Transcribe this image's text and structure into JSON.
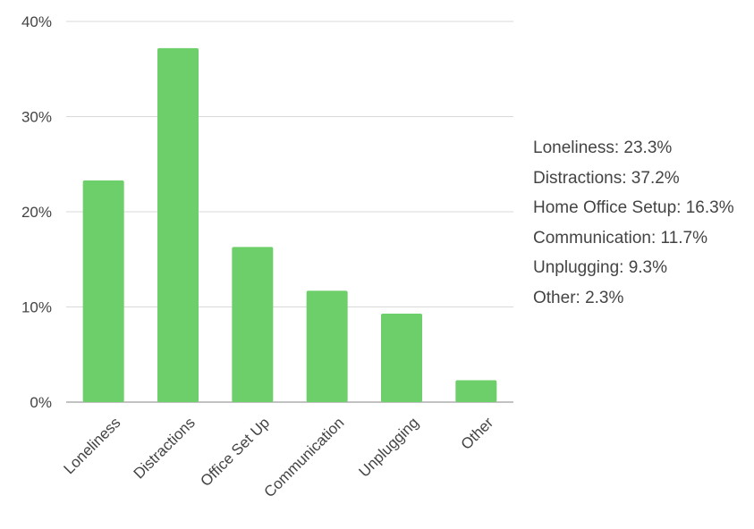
{
  "chart_data": {
    "type": "bar",
    "categories": [
      "Loneliness",
      "Distractions",
      "Office Set Up",
      "Communication",
      "Unplugging",
      "Other"
    ],
    "values": [
      23.3,
      37.2,
      16.3,
      11.7,
      9.3,
      2.3
    ],
    "ylim": [
      0,
      40
    ],
    "yticks": [
      "0%",
      "10%",
      "20%",
      "30%",
      "40%"
    ],
    "grid": true,
    "bar_color": "#6dcf6a",
    "legend_position": "right",
    "legend": [
      "Loneliness: 23.3%",
      "Distractions: 37.2%",
      "Home Office Setup: 16.3%",
      "Communication: 11.7%",
      "Unplugging: 9.3%",
      "Other: 2.3%"
    ]
  }
}
